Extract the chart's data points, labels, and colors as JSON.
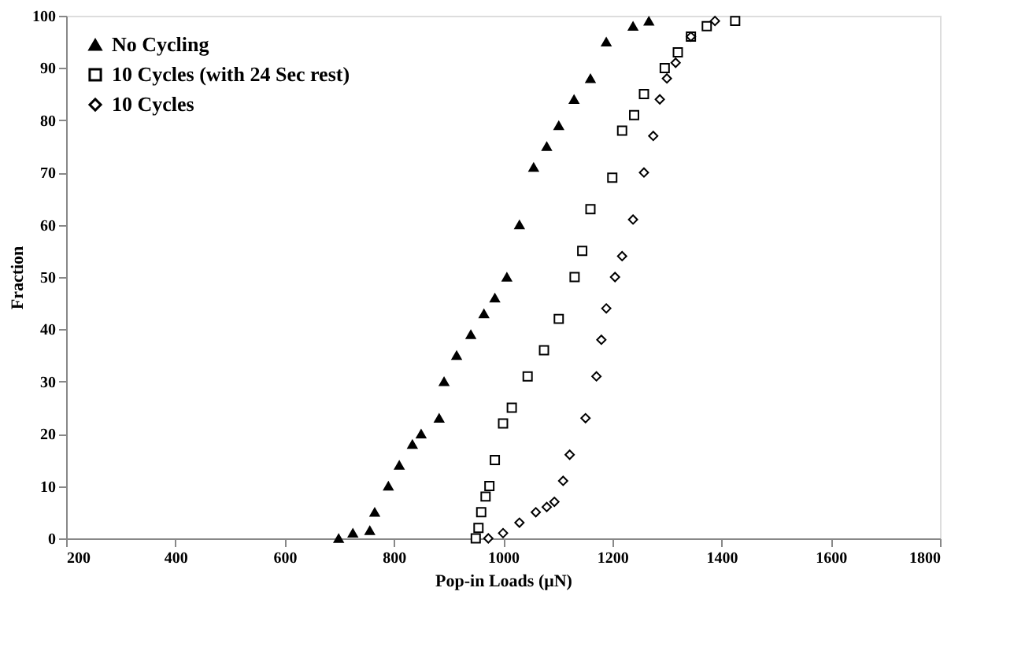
{
  "chart_data": {
    "type": "scatter",
    "xlabel": "Pop-in Loads (μN)",
    "ylabel": "Fraction",
    "xlim": [
      200,
      1800
    ],
    "xticks": [
      200,
      400,
      600,
      800,
      1000,
      1200,
      1400,
      1600,
      1800
    ],
    "ylim": [
      0,
      100
    ],
    "yticks": [
      0,
      10,
      20,
      30,
      40,
      50,
      60,
      70,
      80,
      90,
      100
    ],
    "grid": false,
    "legend": "top left",
    "series": [
      {
        "name": "No Cycling",
        "color": "#000000",
        "marker": "triangle",
        "x": [
          699,
          725,
          756,
          765,
          790,
          810,
          834,
          850,
          883,
          892,
          915,
          941,
          965,
          985,
          1007,
          1030,
          1056,
          1080,
          1102,
          1130,
          1160,
          1189,
          1238,
          1267
        ],
        "values": [
          0,
          1,
          1.5,
          5,
          10,
          14,
          18,
          20,
          23,
          30,
          35,
          39,
          43,
          46,
          50,
          60,
          71,
          75,
          79,
          84,
          88,
          95,
          98,
          99
        ]
      },
      {
        "name": "10 Cycles (with 24 Sec rest)",
        "color": "#000000",
        "marker": "square",
        "x": [
          950,
          955,
          960,
          968,
          975,
          985,
          1000,
          1016,
          1045,
          1075,
          1102,
          1131,
          1145,
          1160,
          1200,
          1218,
          1240,
          1258,
          1296,
          1320,
          1344,
          1373,
          1425
        ],
        "values": [
          0,
          2,
          5,
          8,
          10,
          15,
          22,
          25,
          31,
          36,
          42,
          50,
          55,
          63,
          69,
          78,
          81,
          85,
          90,
          93,
          96,
          98,
          99
        ]
      },
      {
        "name": "10 Cycles",
        "color": "#000000",
        "marker": "diamond",
        "x": [
          973,
          1000,
          1030,
          1060,
          1080,
          1094,
          1110,
          1122,
          1151,
          1171,
          1180,
          1189,
          1205,
          1218,
          1238,
          1258,
          1275,
          1287,
          1300,
          1316,
          1344,
          1388
        ],
        "values": [
          0,
          1,
          3,
          5,
          6,
          7,
          11,
          16,
          23,
          31,
          38,
          44,
          50,
          54,
          61,
          70,
          77,
          84,
          88,
          91,
          96,
          99
        ]
      }
    ]
  }
}
